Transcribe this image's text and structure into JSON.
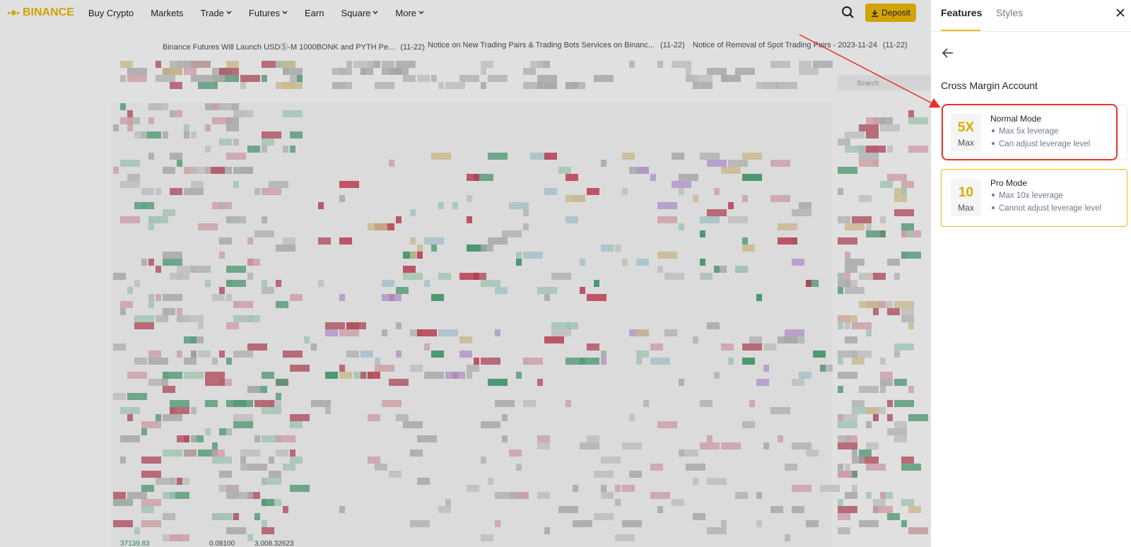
{
  "nav": {
    "logo": "BINANCE",
    "items": [
      "Buy Crypto",
      "Markets",
      "Trade",
      "Futures",
      "Earn",
      "Square",
      "More"
    ],
    "dropdown": [
      false,
      false,
      true,
      true,
      false,
      true,
      true
    ],
    "deposit": "Deposit"
  },
  "announcements": [
    {
      "text": "Binance Futures Will Launch USDⓈ-M 1000BONK and PYTH Pe...",
      "date": "(11-22)"
    },
    {
      "text": "Notice on New Trading Pairs & Trading Bots Services on Binanc...",
      "date": "(11-22)"
    },
    {
      "text": "Notice of Removal of Spot Trading Pairs - 2023-11-24",
      "date": "(11-22)"
    }
  ],
  "background": {
    "search": "Search",
    "bottom_row": [
      "37139.83",
      "0.08100",
      "3,008.32623"
    ]
  },
  "panel": {
    "tabs": [
      "Features",
      "Styles"
    ],
    "title": "Cross Margin Account",
    "modes": [
      {
        "badge": "5X",
        "badge_sub": "Max",
        "name": "Normal Mode",
        "bullets": [
          "Max 5x leverage",
          "Can adjust leverage level"
        ]
      },
      {
        "badge": "10",
        "badge_sub": "Max",
        "name": "Pro Mode",
        "bullets": [
          "Max 10x leverage",
          "Cannot adjust leverage level"
        ]
      }
    ]
  }
}
